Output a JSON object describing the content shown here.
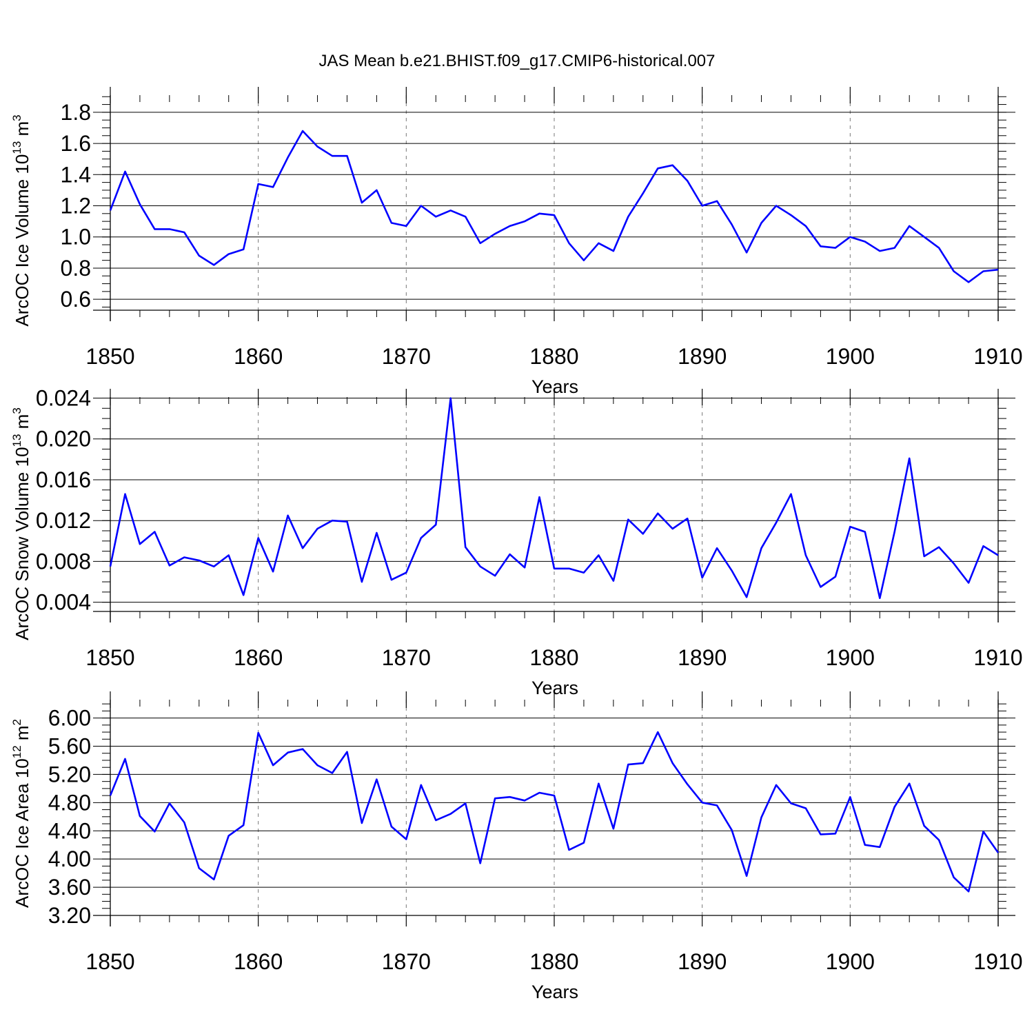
{
  "title": "JAS Mean b.e21.BHIST.f09_g17.CMIP6-historical.007",
  "colors": {
    "line": "#0000ff",
    "axis": "#000000",
    "grid": "#777777",
    "background": "#ffffff"
  },
  "chart_data": [
    {
      "type": "line",
      "ylabel_main": "ArcOC Ice Volume 10",
      "ylabel_exp": "13",
      "ylabel_tail": " m",
      "ylabel_exp2": "3",
      "xlabel": "Years",
      "xlim": [
        1850,
        1910
      ],
      "ylim": [
        0.53,
        1.91
      ],
      "xticks": [
        1850,
        1860,
        1870,
        1880,
        1890,
        1900,
        1910
      ],
      "xtick_labels": [
        "1850",
        "1860",
        "1870",
        "1880",
        "1890",
        "1900",
        "1910"
      ],
      "yticks": [
        0.6,
        0.8,
        1.0,
        1.2,
        1.4,
        1.6,
        1.8
      ],
      "ytick_labels": [
        "0.6",
        "0.8",
        "1.0",
        "1.2",
        "1.4",
        "1.6",
        "1.8"
      ],
      "yminor_step": 0.05,
      "grid": "dashed vertical at decades",
      "series": [
        {
          "x": [
            1850,
            1851,
            1852,
            1853,
            1854,
            1855,
            1856,
            1857,
            1858,
            1859,
            1860,
            1861,
            1862,
            1863,
            1864,
            1865,
            1866,
            1867,
            1868,
            1869,
            1870,
            1871,
            1872,
            1873,
            1874,
            1875,
            1876,
            1877,
            1878,
            1879,
            1880,
            1881,
            1882,
            1883,
            1884,
            1885,
            1886,
            1887,
            1888,
            1889,
            1890,
            1891,
            1892,
            1893,
            1894,
            1895,
            1896,
            1897,
            1898,
            1899,
            1900,
            1901,
            1902,
            1903,
            1904,
            1905,
            1906,
            1907,
            1908,
            1909,
            1910
          ],
          "values": [
            1.17,
            1.42,
            1.21,
            1.05,
            1.05,
            1.03,
            0.88,
            0.82,
            0.89,
            0.92,
            1.34,
            1.32,
            1.51,
            1.68,
            1.58,
            1.52,
            1.52,
            1.22,
            1.3,
            1.09,
            1.07,
            1.2,
            1.13,
            1.17,
            1.13,
            0.96,
            1.02,
            1.07,
            1.1,
            1.15,
            1.14,
            0.96,
            0.85,
            0.96,
            0.91,
            1.13,
            1.28,
            1.44,
            1.46,
            1.36,
            1.2,
            1.23,
            1.08,
            0.9,
            1.09,
            1.2,
            1.14,
            1.07,
            0.94,
            0.93,
            1.0,
            0.97,
            0.91,
            0.93,
            1.07,
            1.0,
            0.93,
            0.78,
            0.71,
            0.78,
            0.79
          ]
        }
      ]
    },
    {
      "type": "line",
      "ylabel_main": "ArcOC Snow Volume 10",
      "ylabel_exp": "13",
      "ylabel_tail": " m",
      "ylabel_exp2": "3",
      "xlabel": "Years",
      "xlim": [
        1850,
        1910
      ],
      "ylim": [
        0.0031,
        0.0241
      ],
      "xticks": [
        1850,
        1860,
        1870,
        1880,
        1890,
        1900,
        1910
      ],
      "xtick_labels": [
        "1850",
        "1860",
        "1870",
        "1880",
        "1890",
        "1900",
        "1910"
      ],
      "yticks": [
        0.004,
        0.008,
        0.012,
        0.016,
        0.02,
        0.024
      ],
      "ytick_labels": [
        "0.004",
        "0.008",
        "0.012",
        "0.016",
        "0.020",
        "0.024"
      ],
      "yminor_step": 0.001,
      "grid": "dashed vertical at decades",
      "series": [
        {
          "x": [
            1850,
            1851,
            1852,
            1853,
            1854,
            1855,
            1856,
            1857,
            1858,
            1859,
            1860,
            1861,
            1862,
            1863,
            1864,
            1865,
            1866,
            1867,
            1868,
            1869,
            1870,
            1871,
            1872,
            1873,
            1874,
            1875,
            1876,
            1877,
            1878,
            1879,
            1880,
            1881,
            1882,
            1883,
            1884,
            1885,
            1886,
            1887,
            1888,
            1889,
            1890,
            1891,
            1892,
            1893,
            1894,
            1895,
            1896,
            1897,
            1898,
            1899,
            1900,
            1901,
            1902,
            1903,
            1904,
            1905,
            1906,
            1907,
            1908,
            1909,
            1910
          ],
          "values": [
            0.0075,
            0.0146,
            0.0097,
            0.0109,
            0.0076,
            0.0084,
            0.0081,
            0.0075,
            0.0086,
            0.0047,
            0.0103,
            0.007,
            0.0125,
            0.0093,
            0.0112,
            0.012,
            0.0119,
            0.006,
            0.0108,
            0.0062,
            0.0069,
            0.0103,
            0.0116,
            0.024,
            0.0094,
            0.0075,
            0.0066,
            0.0087,
            0.0074,
            0.0143,
            0.0073,
            0.0073,
            0.0069,
            0.0086,
            0.0061,
            0.0121,
            0.0107,
            0.0127,
            0.0112,
            0.0122,
            0.0064,
            0.0093,
            0.0071,
            0.0045,
            0.0093,
            0.0118,
            0.0146,
            0.0086,
            0.0055,
            0.0065,
            0.0114,
            0.0109,
            0.0044,
            0.0109,
            0.0181,
            0.0085,
            0.0094,
            0.0078,
            0.0059,
            0.0095,
            0.0086
          ]
        }
      ]
    },
    {
      "type": "line",
      "ylabel_main": "ArcOC Ice Area 10",
      "ylabel_exp": "12",
      "ylabel_tail": " m",
      "ylabel_exp2": "2",
      "xlabel": "Years",
      "xlim": [
        1850,
        1910
      ],
      "ylim": [
        3.2,
        6.26
      ],
      "xticks": [
        1850,
        1860,
        1870,
        1880,
        1890,
        1900,
        1910
      ],
      "xtick_labels": [
        "1850",
        "1860",
        "1870",
        "1880",
        "1890",
        "1900",
        "1910"
      ],
      "yticks": [
        3.2,
        3.6,
        4.0,
        4.4,
        4.8,
        5.2,
        5.6,
        6.0
      ],
      "ytick_labels": [
        "3.20",
        "3.60",
        "4.00",
        "4.40",
        "4.80",
        "5.20",
        "5.60",
        "6.00"
      ],
      "yminor_step": 0.1,
      "grid": "dashed vertical at decades",
      "series": [
        {
          "x": [
            1850,
            1851,
            1852,
            1853,
            1854,
            1855,
            1856,
            1857,
            1858,
            1859,
            1860,
            1861,
            1862,
            1863,
            1864,
            1865,
            1866,
            1867,
            1868,
            1869,
            1870,
            1871,
            1872,
            1873,
            1874,
            1875,
            1876,
            1877,
            1878,
            1879,
            1880,
            1881,
            1882,
            1883,
            1884,
            1885,
            1886,
            1887,
            1888,
            1889,
            1890,
            1891,
            1892,
            1893,
            1894,
            1895,
            1896,
            1897,
            1898,
            1899,
            1900,
            1901,
            1902,
            1903,
            1904,
            1905,
            1906,
            1907,
            1908,
            1909,
            1910
          ],
          "values": [
            4.9,
            5.42,
            4.61,
            4.39,
            4.79,
            4.52,
            3.87,
            3.71,
            4.33,
            4.48,
            5.79,
            5.33,
            5.51,
            5.56,
            5.33,
            5.22,
            5.52,
            4.51,
            5.13,
            4.46,
            4.28,
            5.05,
            4.55,
            4.64,
            4.79,
            3.94,
            4.86,
            4.88,
            4.83,
            4.94,
            4.9,
            4.13,
            4.23,
            5.07,
            4.43,
            5.34,
            5.36,
            5.8,
            5.36,
            5.06,
            4.8,
            4.76,
            4.41,
            3.76,
            4.59,
            5.05,
            4.79,
            4.72,
            4.35,
            4.36,
            4.88,
            4.2,
            4.17,
            4.74,
            5.07,
            4.47,
            4.27,
            3.74,
            3.54,
            4.39,
            4.09
          ]
        }
      ]
    }
  ]
}
